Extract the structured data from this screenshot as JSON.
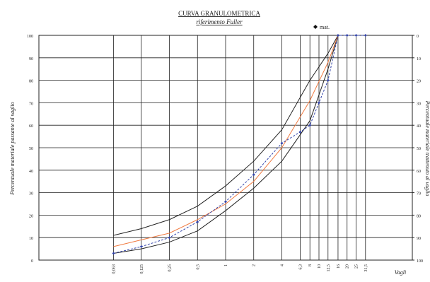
{
  "chart_data": {
    "type": "line",
    "title": "CURVA GRANULOMETRICA",
    "subtitle": "riferimento Fuller",
    "y_label": "Percentuale materiale passante al vaglio",
    "y2_label": "Percentuale materiale trattenuto al vaglio",
    "x_label": "Vagli",
    "log_x": true,
    "grid": true,
    "legend": "top-right",
    "xlim": [
      0.01,
      100
    ],
    "ylim": [
      0,
      100
    ],
    "y2lim": [
      100,
      0
    ],
    "xticks": [
      {
        "value": 0.063,
        "label": "0,063"
      },
      {
        "value": 0.125,
        "label": "0,125"
      },
      {
        "value": 0.25,
        "label": "0,25"
      },
      {
        "value": 0.5,
        "label": "0,5"
      },
      1,
      2,
      4,
      {
        "value": 6.3,
        "label": "6,3"
      },
      8,
      10,
      {
        "value": 12.5,
        "label": "12,5"
      },
      16,
      20,
      25,
      {
        "value": 31.5,
        "label": "31,5"
      }
    ],
    "yticks": [
      0,
      10,
      20,
      30,
      40,
      50,
      60,
      70,
      80,
      90,
      100
    ],
    "y2ticks": [
      0,
      10,
      20,
      30,
      40,
      50,
      60,
      70,
      80,
      90,
      100
    ],
    "series": [
      {
        "color": "#222222",
        "x": [
          0.063,
          0.125,
          0.25,
          0.5,
          1,
          2,
          4,
          8,
          12.5,
          16
        ],
        "values": [
          11,
          14,
          18,
          24,
          33,
          44,
          58,
          80,
          92,
          100
        ]
      },
      {
        "color": "#222222",
        "x": [
          0.063,
          0.125,
          0.25,
          0.5,
          1,
          2,
          4,
          8,
          12.5,
          16
        ],
        "values": [
          3,
          5,
          8,
          13,
          22,
          32,
          44,
          62,
          85,
          100
        ]
      },
      {
        "color": "#f07a40",
        "x": [
          0.063,
          0.125,
          0.25,
          0.5,
          1,
          2,
          4,
          8,
          12.5,
          16
        ],
        "values": [
          6,
          9,
          12,
          18,
          25,
          35,
          50,
          71,
          88,
          100
        ]
      },
      {
        "name": "mat.",
        "color": "#3344aa",
        "x": [
          0.063,
          0.125,
          0.25,
          0.5,
          1,
          2,
          4,
          6.3,
          8,
          10,
          12.5,
          16,
          20,
          25,
          31.5
        ],
        "values": [
          3,
          6,
          10,
          17,
          26,
          38,
          52,
          57,
          60,
          70,
          80,
          100,
          100,
          100,
          100
        ]
      }
    ]
  }
}
